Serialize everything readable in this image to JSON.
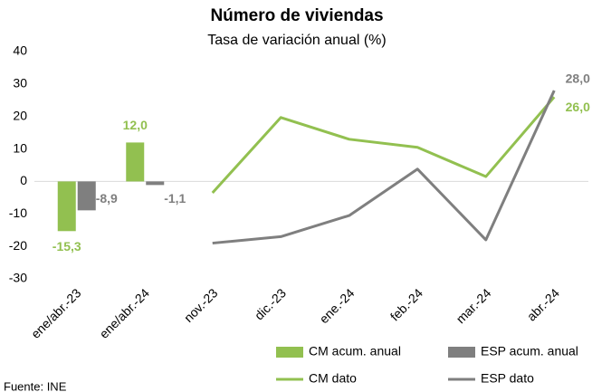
{
  "chart_data": {
    "type": "combo",
    "title": "Número de viviendas",
    "subtitle": "Tasa de variación anual (%)",
    "categories": [
      "ene/abr.-23",
      "ene/abr.-24",
      "nov.-23",
      "dic.-23",
      "ene.-24",
      "feb.-24",
      "mar.-24",
      "abr.-24"
    ],
    "series": [
      {
        "name": "CM acum. anual",
        "type": "bar",
        "color": "#92c050",
        "values": [
          -15.3,
          12.0,
          null,
          null,
          null,
          null,
          null,
          null
        ],
        "value_labels": [
          "-15,3",
          "12,0",
          null,
          null,
          null,
          null,
          null,
          null
        ]
      },
      {
        "name": "ESP acum. anual",
        "type": "bar",
        "color": "#7f7f7f",
        "values": [
          -8.9,
          -1.1,
          null,
          null,
          null,
          null,
          null,
          null
        ],
        "value_labels": [
          "-8,9",
          "-1,1",
          null,
          null,
          null,
          null,
          null,
          null
        ]
      },
      {
        "name": "CM dato",
        "type": "line",
        "color": "#92c050",
        "values": [
          null,
          null,
          -3.5,
          19.7,
          13.0,
          10.5,
          1.5,
          26.0
        ],
        "value_labels": [
          null,
          null,
          null,
          null,
          null,
          null,
          null,
          "26,0"
        ]
      },
      {
        "name": "ESP dato",
        "type": "line",
        "color": "#7f7f7f",
        "values": [
          null,
          null,
          -19.0,
          -17.0,
          -10.5,
          3.8,
          -18.0,
          28.0
        ],
        "value_labels": [
          null,
          null,
          null,
          null,
          null,
          null,
          null,
          "28,0"
        ]
      }
    ],
    "ylim": [
      -30,
      40
    ],
    "yticks": [
      -30,
      -20,
      -10,
      0,
      10,
      20,
      30,
      40
    ],
    "grid": false,
    "source": "Fuente: INE"
  }
}
